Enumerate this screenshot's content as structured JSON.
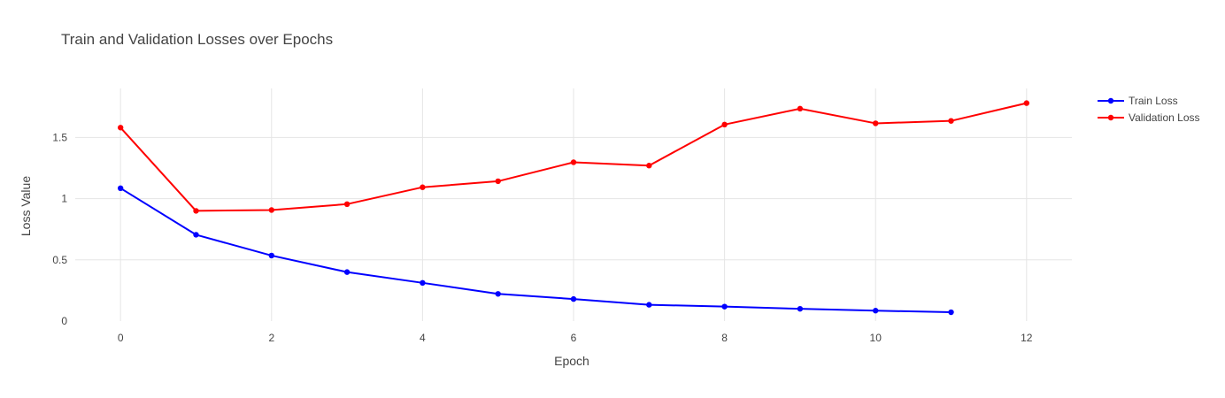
{
  "chart_data": {
    "type": "line",
    "title": "Train and Validation Losses over Epochs",
    "xlabel": "Epoch",
    "ylabel": "Loss Value",
    "xlim": [
      -0.6,
      12.6
    ],
    "ylim": [
      0,
      1.9
    ],
    "xticks": [
      0,
      2,
      4,
      6,
      8,
      10,
      12
    ],
    "xtick_labels": [
      "0",
      "2",
      "4",
      "6",
      "8",
      "10",
      "12"
    ],
    "yticks": [
      0,
      0.5,
      1,
      1.5
    ],
    "ytick_labels": [
      "0",
      "0.5",
      "1",
      "1.5"
    ],
    "grid": true,
    "legend_position": "top-right",
    "series": [
      {
        "name": "Train Loss",
        "color": "#0000ff",
        "x": [
          0,
          1,
          2,
          3,
          4,
          5,
          6,
          7,
          8,
          9,
          10,
          11
        ],
        "y": [
          1.085,
          0.705,
          0.535,
          0.4,
          0.312,
          0.222,
          0.18,
          0.133,
          0.118,
          0.1,
          0.085,
          0.072
        ]
      },
      {
        "name": "Validation Loss",
        "color": "#ff0000",
        "x": [
          0,
          1,
          2,
          3,
          4,
          5,
          6,
          7,
          8,
          9,
          10,
          11,
          12
        ],
        "y": [
          1.58,
          0.9,
          0.907,
          0.955,
          1.093,
          1.142,
          1.297,
          1.27,
          1.605,
          1.735,
          1.615,
          1.635,
          1.78
        ]
      }
    ]
  }
}
